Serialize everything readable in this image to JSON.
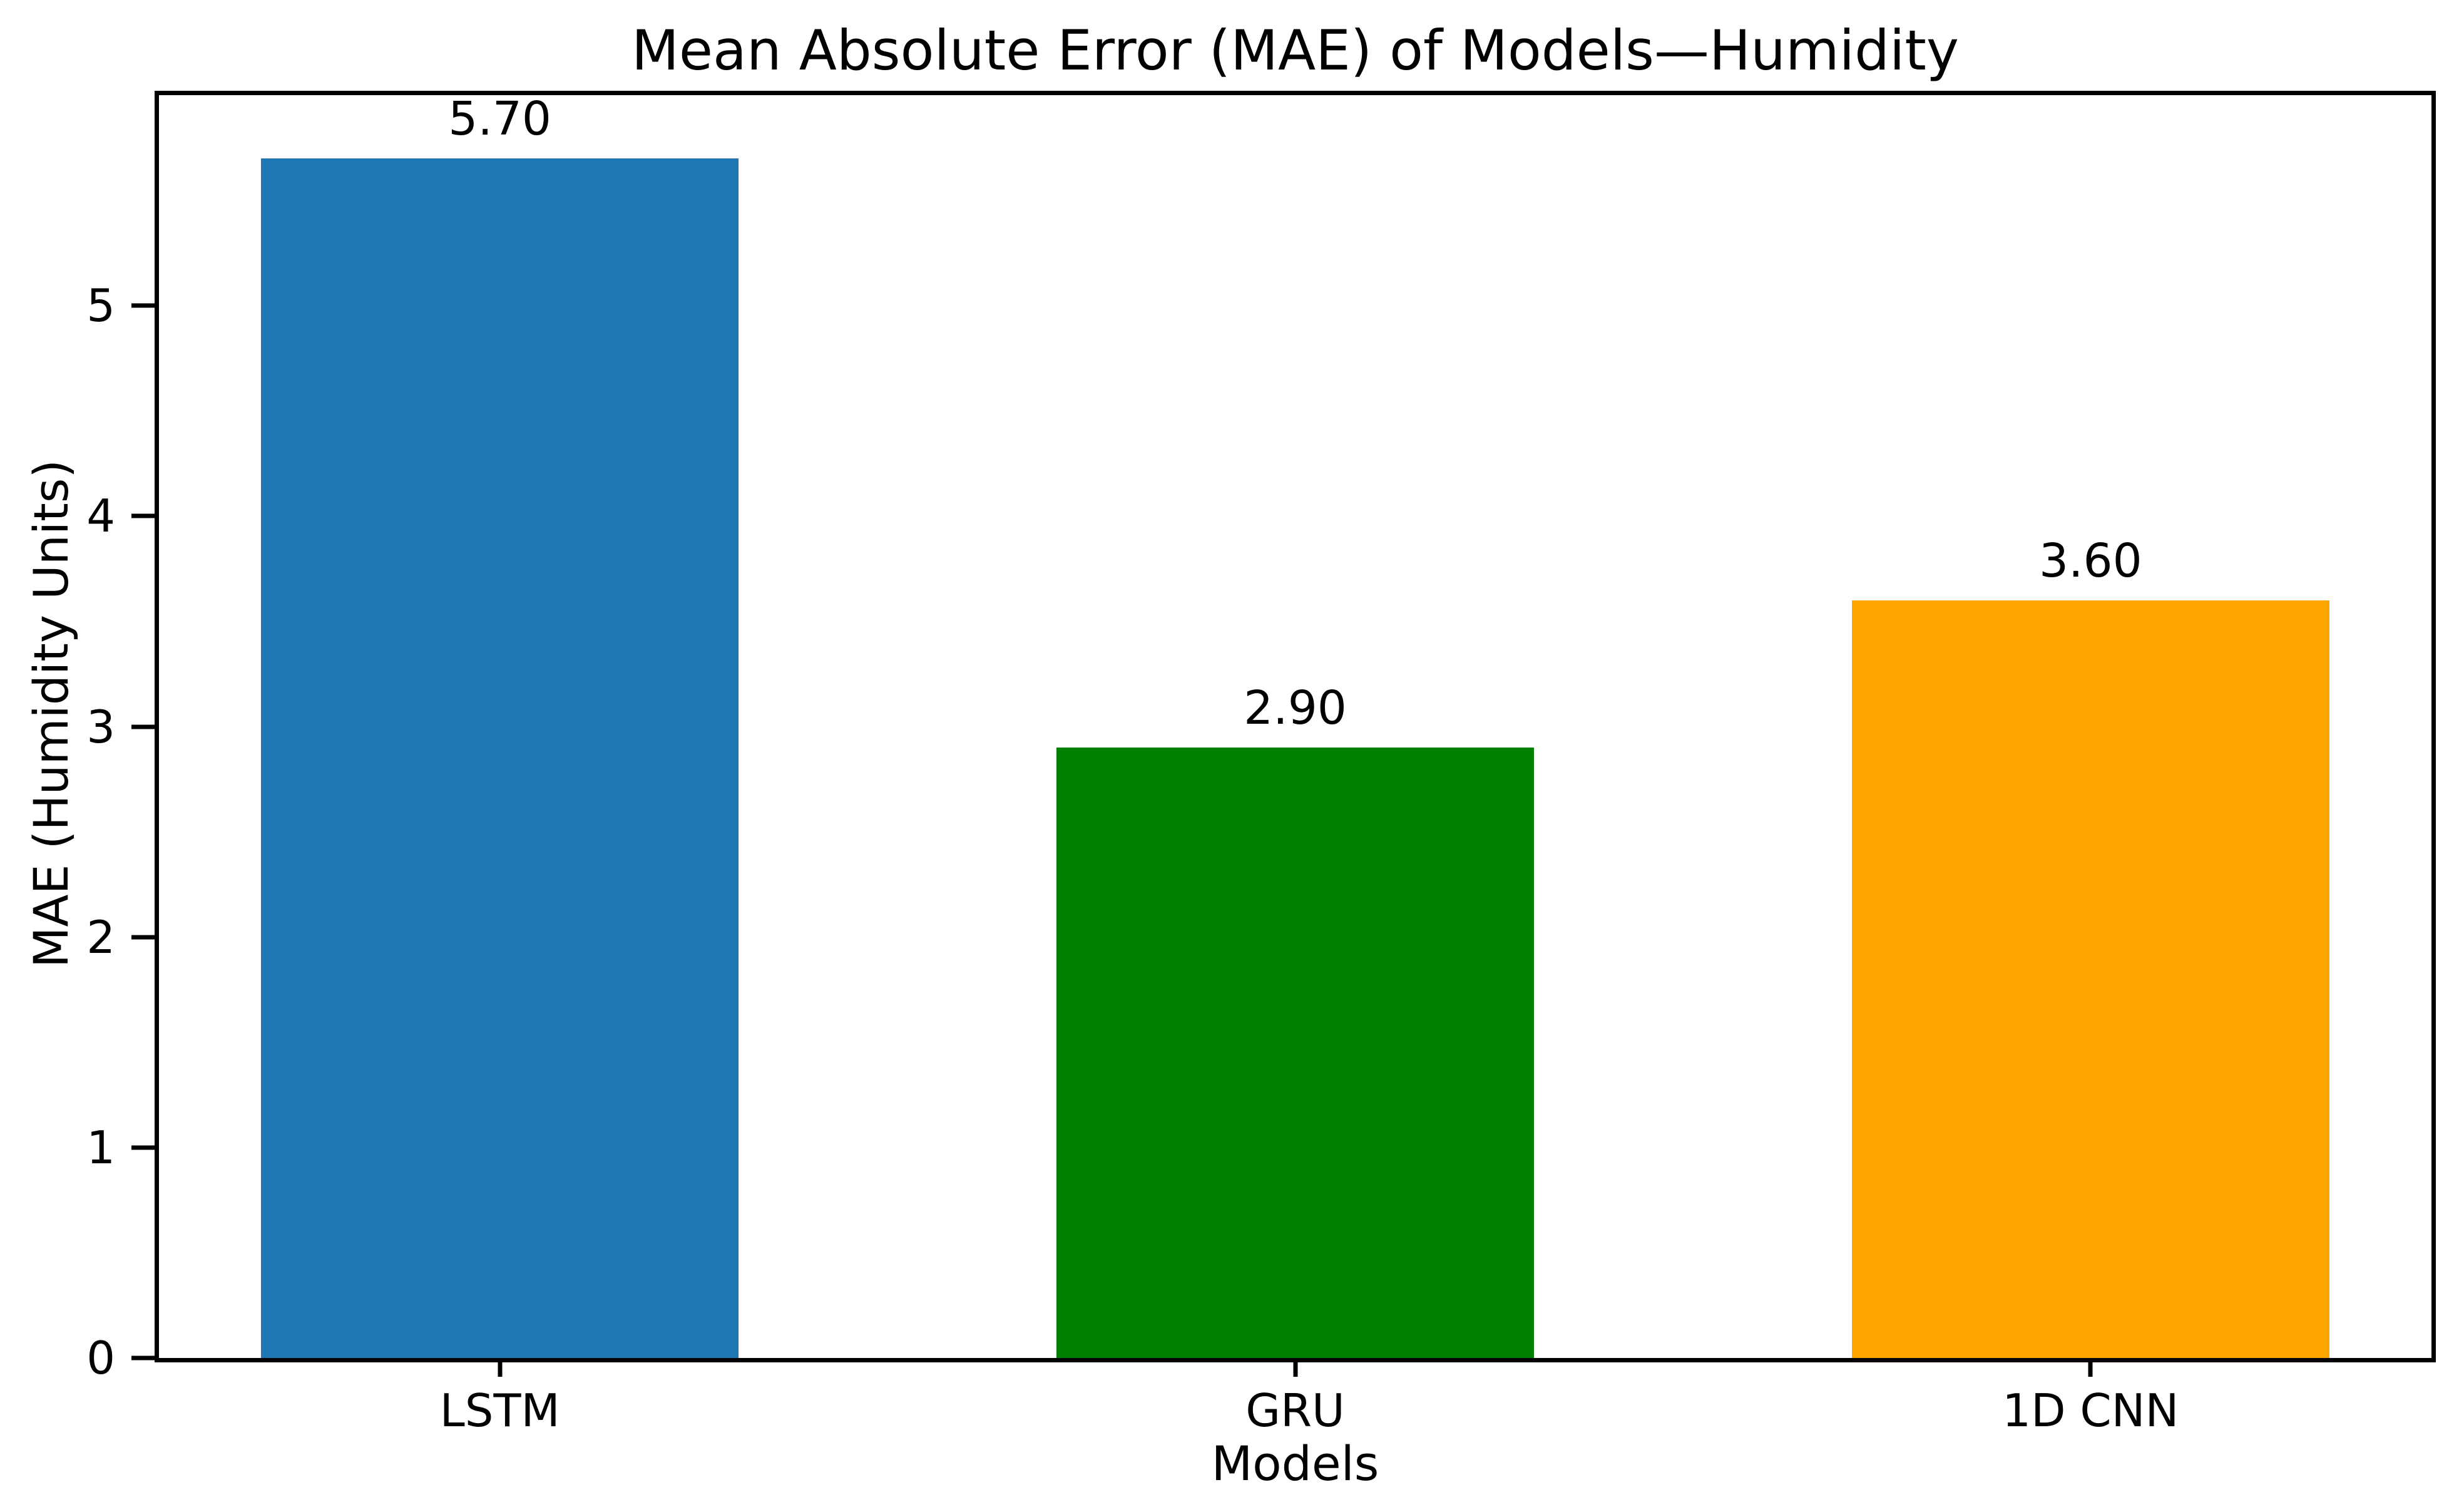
{
  "chart_data": {
    "type": "bar",
    "title": "Mean Absolute Error (MAE) of Models—Humidity",
    "xlabel": "Models",
    "ylabel": "MAE (Humidity Units)",
    "categories": [
      "LSTM",
      "GRU",
      "1D CNN"
    ],
    "values": [
      5.7,
      2.9,
      3.6
    ],
    "value_labels": [
      "5.70",
      "2.90",
      "3.60"
    ],
    "bar_colors": [
      "#1f77b4",
      "#008000",
      "#ffa500"
    ],
    "ylim": [
      0,
      6
    ],
    "yticks": [
      0,
      1,
      2,
      3,
      4,
      5
    ],
    "ytick_labels": [
      "0",
      "1",
      "2",
      "3",
      "4",
      "5"
    ],
    "grid": false,
    "legend": "none",
    "bar_rel_width": 0.6,
    "first_last_center_inset_frac": 0.15,
    "spine_color": "#000000",
    "text_color": "#000000",
    "background_color": "#ffffff"
  }
}
